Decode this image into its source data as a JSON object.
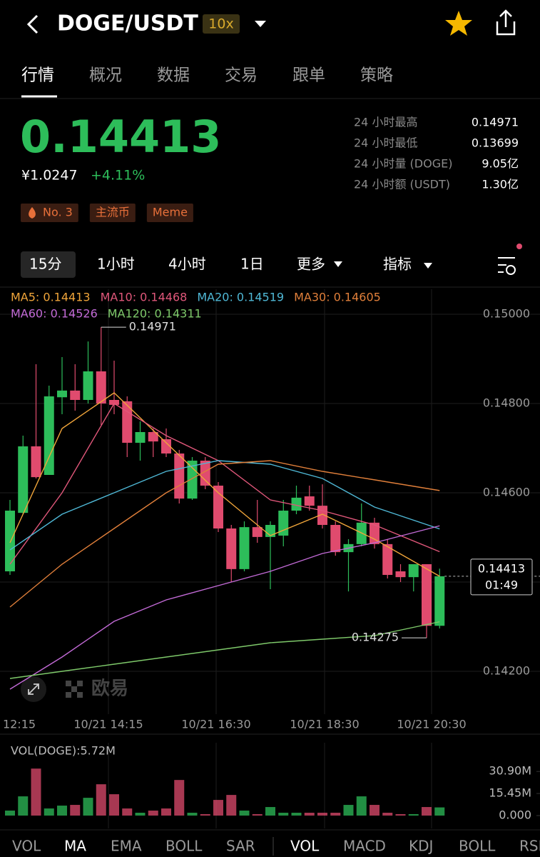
{
  "header": {
    "pair": "DOGE/USDT",
    "leverage": "10x"
  },
  "tabs": [
    "行情",
    "概况",
    "数据",
    "交易",
    "跟单",
    "策略"
  ],
  "summary": {
    "price": "0.14413",
    "cny": "¥1.0247",
    "change": "+4.11%",
    "stats": [
      [
        "24 小时最高",
        "0.14971"
      ],
      [
        "24 小时最低",
        "0.13699"
      ],
      [
        "24 小时量 (DOGE)",
        "9.05亿"
      ],
      [
        "24 小时额 (USDT)",
        "1.30亿"
      ]
    ],
    "tags": [
      "No. 3",
      "主流币",
      "Meme"
    ]
  },
  "timeframes": [
    "15分",
    "1小时",
    "4小时",
    "1日"
  ],
  "more": "更多",
  "indicators": "指标",
  "chart_data": {
    "type": "candlestick",
    "up_color": "#2dbd5a",
    "down_color": "#e04b6e",
    "open": [
      0.14424,
      0.14555,
      0.14704,
      0.1464,
      0.14814,
      0.14829,
      0.14808,
      0.14872,
      0.14808,
      0.14805,
      0.14712,
      0.14736,
      0.1472,
      0.14688,
      0.14587,
      0.14672,
      0.14616,
      0.1452,
      0.14429,
      0.14523,
      0.14501,
      0.14504,
      0.1456,
      0.14592,
      0.14571,
      0.14528,
      0.14467,
      0.14485,
      0.14533,
      0.14485,
      0.14424,
      0.14411,
      0.1444,
      0.14302
    ],
    "close": [
      0.1456,
      0.14704,
      0.14635,
      0.14816,
      0.14829,
      0.14808,
      0.14872,
      0.148,
      0.14797,
      0.14712,
      0.14736,
      0.14715,
      0.14688,
      0.14587,
      0.14672,
      0.14616,
      0.1452,
      0.14429,
      0.14523,
      0.14501,
      0.14528,
      0.1456,
      0.14589,
      0.14571,
      0.14528,
      0.14467,
      0.14485,
      0.14533,
      0.14485,
      0.14416,
      0.14411,
      0.1444,
      0.14302,
      0.14413
    ],
    "high": [
      0.14584,
      0.14728,
      0.14888,
      0.1484,
      0.14904,
      0.14888,
      0.14939,
      0.14971,
      0.14896,
      0.14816,
      0.1476,
      0.14744,
      0.14744,
      0.14696,
      0.1468,
      0.1468,
      0.14624,
      0.14528,
      0.14536,
      0.14584,
      0.14536,
      0.14584,
      0.14616,
      0.14616,
      0.14619,
      0.14536,
      0.14496,
      0.14576,
      0.14544,
      0.14496,
      0.1444,
      0.1444,
      0.1444,
      0.1443
    ],
    "low": [
      0.14416,
      0.14552,
      0.14632,
      0.1464,
      0.14776,
      0.14784,
      0.148,
      0.14752,
      0.14776,
      0.1468,
      0.14672,
      0.1468,
      0.1468,
      0.14576,
      0.14584,
      0.14608,
      0.14512,
      0.144,
      0.14424,
      0.14488,
      0.14384,
      0.1448,
      0.14552,
      0.1456,
      0.1452,
      0.14459,
      0.14379,
      0.1448,
      0.14475,
      0.14408,
      0.144,
      0.14379,
      0.14275,
      0.14296
    ],
    "ylim": [
      0.14104,
      0.15056
    ],
    "yticks": [
      {
        "value": 0.15,
        "label": "0.15000"
      },
      {
        "value": 0.148,
        "label": "0.14800"
      },
      {
        "value": 0.146,
        "label": "0.14600"
      },
      {
        "value": 0.142,
        "label": "0.14200"
      }
    ],
    "time_labels": [
      "12:15",
      "10/21 14:15",
      "10/21 16:30",
      "10/21 18:30",
      "10/21 20:30"
    ],
    "ma_x": [
      0,
      4,
      8,
      12,
      16,
      20,
      24,
      28,
      33
    ],
    "series": [
      {
        "name": "MA5: 0.14413",
        "color": "#f0a53a",
        "values": [
          0.14488,
          0.14744,
          0.14824,
          0.14712,
          0.146,
          0.14504,
          0.14552,
          0.14496,
          0.14413
        ]
      },
      {
        "name": "MA10: 0.14468",
        "color": "#e0577a",
        "values": [
          0.1444,
          0.146,
          0.148,
          0.14728,
          0.14672,
          0.14584,
          0.1456,
          0.14528,
          0.14468
        ]
      },
      {
        "name": "MA20: 0.14519",
        "color": "#4fb8d6",
        "values": [
          0.14472,
          0.14552,
          0.146,
          0.14648,
          0.14672,
          0.14664,
          0.14632,
          0.14568,
          0.14519
        ]
      },
      {
        "name": "MA30: 0.14605",
        "color": "#e07f3a",
        "values": [
          0.14344,
          0.1444,
          0.1452,
          0.146,
          0.14664,
          0.14672,
          0.14648,
          0.14629,
          0.14605
        ]
      },
      {
        "name": "MA60: 0.14526",
        "color": "#c26ad6",
        "values": [
          0.1416,
          0.14232,
          0.14312,
          0.1436,
          0.14392,
          0.14424,
          0.14464,
          0.14488,
          0.14526
        ]
      },
      {
        "name": "MA120: 0.14311",
        "color": "#7ec96a",
        "values": [
          0.14184,
          0.142,
          0.14216,
          0.14232,
          0.14248,
          0.14264,
          0.14272,
          0.1428,
          0.14311
        ]
      }
    ],
    "high_label": "0.14971",
    "low_label": "0.14275",
    "price_tag": {
      "price": "0.14413",
      "countdown": "01:49"
    },
    "watermark": "欧易",
    "volume": {
      "label": "VOL(DOGE):5.72M",
      "ylim": [
        0,
        36
      ],
      "yticks": [
        {
          "value": 30.9,
          "label": "30.90M"
        },
        {
          "value": 15.45,
          "label": "15.45M"
        },
        {
          "value": 0,
          "label": "0.000"
        }
      ],
      "values": [
        3.49,
        13.46,
        32.9,
        4.98,
        6.98,
        7.48,
        12.46,
        21.93,
        14.95,
        4.98,
        1.99,
        3.49,
        4.98,
        24.92,
        1.99,
        1.0,
        10.96,
        14.45,
        3.49,
        1.0,
        5.98,
        1.99,
        1.99,
        1.99,
        1.99,
        1.99,
        7.48,
        13.46,
        7.48,
        1.99,
        1.0,
        1.0,
        5.98,
        5.72
      ]
    }
  },
  "indicator_tabs": {
    "main": [
      "VOL",
      "MA",
      "EMA",
      "BOLL",
      "SAR"
    ],
    "sub": [
      "VOL",
      "MACD",
      "KDJ",
      "BOLL",
      "RSI"
    ]
  }
}
